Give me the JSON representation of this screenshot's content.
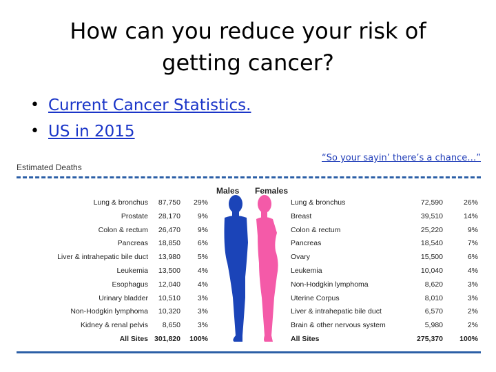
{
  "title": "How can you reduce your risk of getting cancer?",
  "bullets": [
    {
      "text": "Current Cancer Statistics."
    },
    {
      "text": "US in 2015"
    }
  ],
  "quote": "“So your sayin’ there’s a chance…”",
  "chart": {
    "title": "Estimated Deaths",
    "males_label": "Males",
    "females_label": "Females",
    "male_color": "#1b44b8",
    "female_color": "#f45aa8",
    "males": [
      {
        "site": "Lung & bronchus",
        "deaths": "87,750",
        "pct": "29%"
      },
      {
        "site": "Prostate",
        "deaths": "28,170",
        "pct": "9%"
      },
      {
        "site": "Colon & rectum",
        "deaths": "26,470",
        "pct": "9%"
      },
      {
        "site": "Pancreas",
        "deaths": "18,850",
        "pct": "6%"
      },
      {
        "site": "Liver & intrahepatic bile duct",
        "deaths": "13,980",
        "pct": "5%"
      },
      {
        "site": "Leukemia",
        "deaths": "13,500",
        "pct": "4%"
      },
      {
        "site": "Esophagus",
        "deaths": "12,040",
        "pct": "4%"
      },
      {
        "site": "Urinary bladder",
        "deaths": "10,510",
        "pct": "3%"
      },
      {
        "site": "Non-Hodgkin lymphoma",
        "deaths": "10,320",
        "pct": "3%"
      },
      {
        "site": "Kidney & renal pelvis",
        "deaths": "8,650",
        "pct": "3%"
      }
    ],
    "males_total": {
      "site": "All Sites",
      "deaths": "301,820",
      "pct": "100%"
    },
    "females": [
      {
        "site": "Lung & bronchus",
        "deaths": "72,590",
        "pct": "26%"
      },
      {
        "site": "Breast",
        "deaths": "39,510",
        "pct": "14%"
      },
      {
        "site": "Colon & rectum",
        "deaths": "25,220",
        "pct": "9%"
      },
      {
        "site": "Pancreas",
        "deaths": "18,540",
        "pct": "7%"
      },
      {
        "site": "Ovary",
        "deaths": "15,500",
        "pct": "6%"
      },
      {
        "site": "Leukemia",
        "deaths": "10,040",
        "pct": "4%"
      },
      {
        "site": "Non-Hodgkin lymphoma",
        "deaths": "8,620",
        "pct": "3%"
      },
      {
        "site": "Uterine Corpus",
        "deaths": "8,010",
        "pct": "3%"
      },
      {
        "site": "Liver & intrahepatic bile duct",
        "deaths": "6,570",
        "pct": "2%"
      },
      {
        "site": "Brain & other nervous system",
        "deaths": "5,980",
        "pct": "2%"
      }
    ],
    "females_total": {
      "site": "All Sites",
      "deaths": "275,370",
      "pct": "100%"
    }
  }
}
